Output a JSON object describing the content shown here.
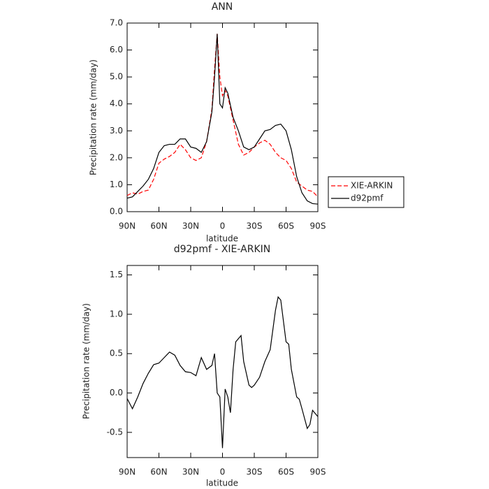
{
  "chart_data": [
    {
      "type": "line",
      "title": "ANN",
      "x_label": "latitude",
      "y_label": "Precipitation rate (mm/day)",
      "x": [
        90,
        85,
        80,
        75,
        70,
        65,
        60,
        55,
        50,
        45,
        40,
        35,
        30,
        25,
        20,
        15,
        10,
        7.5,
        5,
        2.5,
        0,
        -2.5,
        -5,
        -10,
        -15,
        -20,
        -25,
        -30,
        -35,
        -40,
        -45,
        -50,
        -55,
        -60,
        -65,
        -70,
        -75,
        -80,
        -85,
        -90
      ],
      "xlim": [
        90,
        -90
      ],
      "xticks": [
        {
          "value": 90,
          "label": "90N"
        },
        {
          "value": 60,
          "label": "60N"
        },
        {
          "value": 30,
          "label": "30N"
        },
        0,
        {
          "value": -30,
          "label": "30S"
        },
        {
          "value": -60,
          "label": "60S"
        },
        {
          "value": -90,
          "label": "90S"
        }
      ],
      "ylim": [
        0,
        7
      ],
      "yticks": [
        {
          "value": 0,
          "label": "0.0"
        },
        {
          "value": 1,
          "label": "1.0"
        },
        {
          "value": 2,
          "label": "2.0"
        },
        {
          "value": 3,
          "label": "3.0"
        },
        {
          "value": 4,
          "label": "4.0"
        },
        {
          "value": 5,
          "label": "5.0"
        },
        {
          "value": 6,
          "label": "6.0"
        },
        {
          "value": 7,
          "label": "7.0"
        }
      ],
      "legend": "right",
      "series": [
        {
          "name": "XIE-ARKIN",
          "color": "#ff0000",
          "line_style": "dashed",
          "values": [
            0.6,
            0.7,
            0.65,
            0.75,
            0.8,
            1.2,
            1.8,
            1.95,
            2.05,
            2.2,
            2.5,
            2.3,
            2.0,
            1.9,
            2.0,
            2.6,
            3.8,
            5.3,
            6.6,
            5.0,
            4.3,
            4.5,
            4.3,
            3.4,
            2.5,
            2.1,
            2.2,
            2.4,
            2.55,
            2.65,
            2.5,
            2.2,
            2.0,
            1.9,
            1.6,
            1.1,
            0.95,
            0.8,
            0.75,
            0.55
          ]
        },
        {
          "name": "d92pmf",
          "color": "#000000",
          "line_style": "solid",
          "values": [
            0.5,
            0.55,
            0.75,
            0.95,
            1.2,
            1.6,
            2.2,
            2.45,
            2.5,
            2.5,
            2.7,
            2.7,
            2.4,
            2.35,
            2.2,
            2.6,
            3.7,
            5.0,
            6.6,
            4.0,
            3.85,
            4.6,
            4.4,
            3.5,
            3.0,
            2.4,
            2.3,
            2.4,
            2.7,
            3.0,
            3.05,
            3.2,
            3.25,
            3.0,
            2.3,
            1.3,
            0.7,
            0.4,
            0.3,
            0.28
          ]
        }
      ]
    },
    {
      "type": "line",
      "title": "d92pmf - XIE-ARKIN",
      "x_label": "latitude",
      "y_label": "Precipitation rate (mm/day)",
      "x": [
        90,
        85,
        80,
        75,
        70,
        65,
        60,
        55,
        50,
        45,
        40,
        35,
        30,
        25,
        20,
        15,
        10,
        7.5,
        5,
        2.5,
        0,
        -2.5,
        -5,
        -7.5,
        -10,
        -12.5,
        -17.5,
        -20,
        -25,
        -27.5,
        -30,
        -35,
        -40,
        -45,
        -50,
        -52.5,
        -55,
        -60,
        -62.5,
        -65,
        -70,
        -72.5,
        -75,
        -80,
        -82.5,
        -85,
        -90
      ],
      "xlim": [
        90,
        -90
      ],
      "xticks": [
        {
          "value": 90,
          "label": "90N"
        },
        {
          "value": 60,
          "label": "60N"
        },
        {
          "value": 30,
          "label": "30N"
        },
        0,
        {
          "value": -30,
          "label": "30S"
        },
        {
          "value": -60,
          "label": "60S"
        },
        {
          "value": -90,
          "label": "90S"
        }
      ],
      "ylim": [
        -0.82,
        1.62
      ],
      "yticks": [
        -0.5,
        {
          "value": 0,
          "label": "0.0"
        },
        0.5,
        {
          "value": 1,
          "label": "1.0"
        },
        1.5
      ],
      "series": [
        {
          "color": "#000000",
          "line_style": "solid",
          "values": [
            -0.07,
            -0.2,
            -0.05,
            0.12,
            0.25,
            0.36,
            0.38,
            0.45,
            0.52,
            0.48,
            0.35,
            0.27,
            0.26,
            0.22,
            0.45,
            0.3,
            0.35,
            0.5,
            0.0,
            -0.05,
            -0.7,
            0.05,
            -0.05,
            -0.25,
            0.3,
            0.65,
            0.73,
            0.4,
            0.1,
            0.07,
            0.1,
            0.2,
            0.4,
            0.55,
            1.05,
            1.22,
            1.18,
            0.65,
            0.62,
            0.3,
            -0.05,
            -0.08,
            -0.2,
            -0.45,
            -0.4,
            -0.22,
            -0.3
          ]
        }
      ]
    }
  ]
}
